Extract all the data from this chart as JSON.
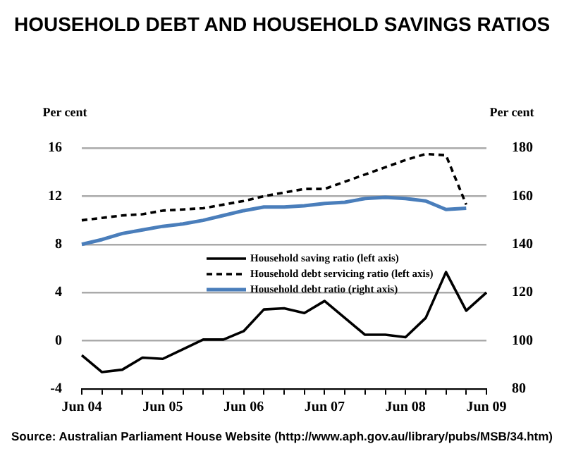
{
  "chart_data": {
    "type": "line",
    "title": "HOUSEHOLD DEBT AND HOUSEHOLD SAVINGS RATIOS",
    "ylabel": "Per cent",
    "y2label": "Per cent",
    "categories": [
      "Jun 04",
      null,
      null,
      null,
      "Jun 05",
      null,
      null,
      null,
      "Jun 06",
      null,
      null,
      null,
      "Jun 07",
      null,
      null,
      null,
      "Jun 08",
      null,
      null,
      null,
      "Jun 09"
    ],
    "series": [
      {
        "name": "Household saving ratio (left axis)",
        "color": "#000000",
        "line_style": "solid",
        "axis": "y",
        "values": [
          -1.2,
          -2.6,
          -2.4,
          -1.4,
          -1.5,
          -0.7,
          0.1,
          0.1,
          0.8,
          2.6,
          2.7,
          2.3,
          3.3,
          1.9,
          0.5,
          0.5,
          0.3,
          1.9,
          5.7,
          2.5,
          4.0
        ]
      },
      {
        "name": "Household debt servicing ratio (left axis)",
        "color": "#000000",
        "line_style": "dashed",
        "axis": "y",
        "values": [
          10.0,
          10.2,
          10.4,
          10.5,
          10.8,
          10.9,
          11.0,
          11.3,
          11.6,
          12.0,
          12.3,
          12.6,
          12.6,
          13.2,
          13.8,
          14.4,
          15.0,
          15.5,
          15.4,
          11.3,
          null
        ]
      },
      {
        "name": "Household debt ratio (right axis)",
        "color": "#4a7ebb",
        "line_style": "solid",
        "axis": "y2",
        "values": [
          140,
          142,
          144.5,
          146,
          147.5,
          148.5,
          150,
          152,
          154,
          155.5,
          155.5,
          156,
          157,
          157.5,
          159,
          159.5,
          159,
          158,
          154.5,
          155,
          null
        ]
      }
    ],
    "ylim": [
      -4,
      16
    ],
    "yticks": [
      -4,
      0,
      4,
      8,
      12,
      16
    ],
    "y2lim": [
      80,
      180
    ],
    "y2ticks": [
      80,
      100,
      120,
      140,
      160,
      180
    ],
    "grid": "y",
    "legend": "center",
    "marker": "none",
    "annotations": [
      "Source: Australian Parliament House Website (http://www.aph.gov.au/library/pubs/MSB/34.htm)"
    ]
  }
}
